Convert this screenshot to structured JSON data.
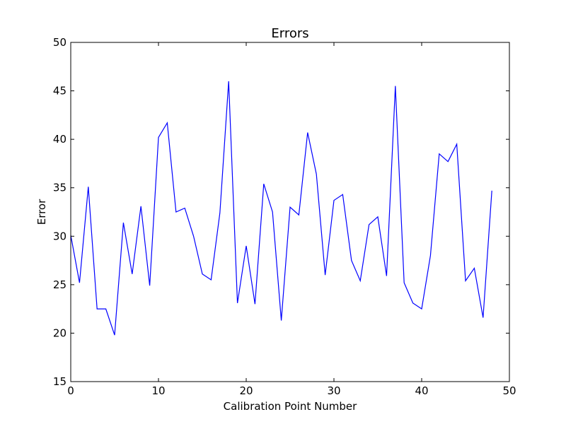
{
  "chart_data": {
    "type": "line",
    "title": "Errors",
    "xlabel": "Calibration Point Number",
    "ylabel": "Error",
    "xlim": [
      0,
      50
    ],
    "ylim": [
      15,
      50
    ],
    "x_ticks": [
      0,
      10,
      20,
      30,
      40,
      50
    ],
    "y_ticks": [
      15,
      20,
      25,
      30,
      35,
      40,
      45,
      50
    ],
    "grid": false,
    "series": [
      {
        "color": "#0000ff",
        "x": [
          0,
          1,
          2,
          3,
          4,
          5,
          6,
          7,
          8,
          9,
          10,
          11,
          12,
          13,
          14,
          15,
          16,
          17,
          18,
          19,
          20,
          21,
          22,
          23,
          24,
          25,
          26,
          27,
          28,
          29,
          30,
          31,
          32,
          33,
          34,
          35,
          36,
          37,
          38,
          39,
          40,
          41,
          42,
          43,
          44,
          45,
          46,
          47,
          48
        ],
        "y": [
          30.1,
          25.2,
          35.1,
          22.5,
          22.5,
          19.8,
          31.4,
          26.1,
          33.1,
          24.9,
          40.2,
          41.7,
          32.5,
          32.9,
          30.0,
          26.1,
          25.5,
          32.4,
          46.0,
          23.1,
          29.0,
          23.0,
          35.4,
          32.5,
          21.3,
          33.0,
          32.2,
          40.7,
          36.4,
          26.0,
          33.7,
          34.3,
          27.5,
          25.4,
          31.2,
          32.0,
          25.9,
          45.5,
          25.2,
          23.1,
          22.5,
          28.0,
          38.5,
          37.7,
          39.5,
          25.4,
          26.7,
          21.6,
          34.7
        ]
      }
    ]
  }
}
